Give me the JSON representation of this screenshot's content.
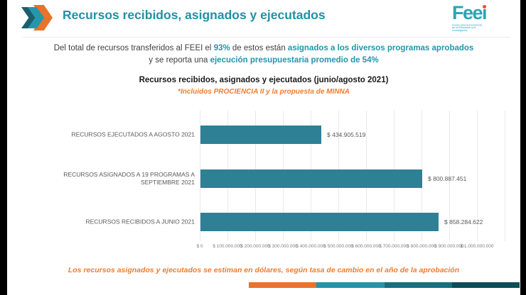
{
  "header": {
    "title": "Recursos recibidos, asignados y ejecutados",
    "logo_text": "Feei",
    "logo_tagline": "Fondo para la Excelencia de la Educación y la Investigación"
  },
  "intro": {
    "l1s1": "Del total de recursos transferidos al FEEI el ",
    "l1s2": "93%",
    "l1s3": " de estos están ",
    "l1s4": "asignados a los diversos programas aprobados",
    "l2s1": "y se reporta una ",
    "l2s2": "ejecución presupuestaria promedio de  54%"
  },
  "chart_data": {
    "type": "bar",
    "orientation": "horizontal",
    "title": "Recursos recibidos, asignados y ejecutados (junio/agosto 2021)",
    "subtitle": "*Incluidos PROCIENCIA II y la propuesta de MINNA",
    "categories": [
      "RECURSOS EJECUTADOS A AGOSTO 2021",
      "RECURSOS ASIGNADOS A 19 PROGRAMAS A SEPTIEMBRE 2021",
      "RECURSOS RECIBIDOS A JUNIO 2021"
    ],
    "values": [
      434905519,
      800887451,
      858284622
    ],
    "value_labels": [
      "$ 434.905.519",
      "$ 800.887.451",
      "$ 858.284.622"
    ],
    "x_tick_labels": [
      "$ 0",
      "$ 100.000.000",
      "$ 200.000.000",
      "$ 300.000.000",
      "$ 400.000.000",
      "$ 500.000.000",
      "$ 600.000.000",
      "$ 700.000.000",
      "$ 800.000.000",
      "$ 900.000.000",
      "$ 1.000.000.000"
    ],
    "xlim": [
      0,
      1100000000
    ],
    "tick_interval": 100000000,
    "grid": true,
    "legend": "none",
    "bar_color": "#2e8095"
  },
  "footer": {
    "note": "Los recursos asignados y ejecutados se estiman en dólares, según tasa de cambio en el año de la aprobación",
    "strip_colors": [
      "#e8732a",
      "#2196a6",
      "#16707e",
      "#0d4d59"
    ]
  },
  "colors": {
    "accent_teal": "#2196ab",
    "accent_orange": "#ed7d31",
    "bar_teal": "#2e8095",
    "logo_teal": "#2aa5b5"
  }
}
